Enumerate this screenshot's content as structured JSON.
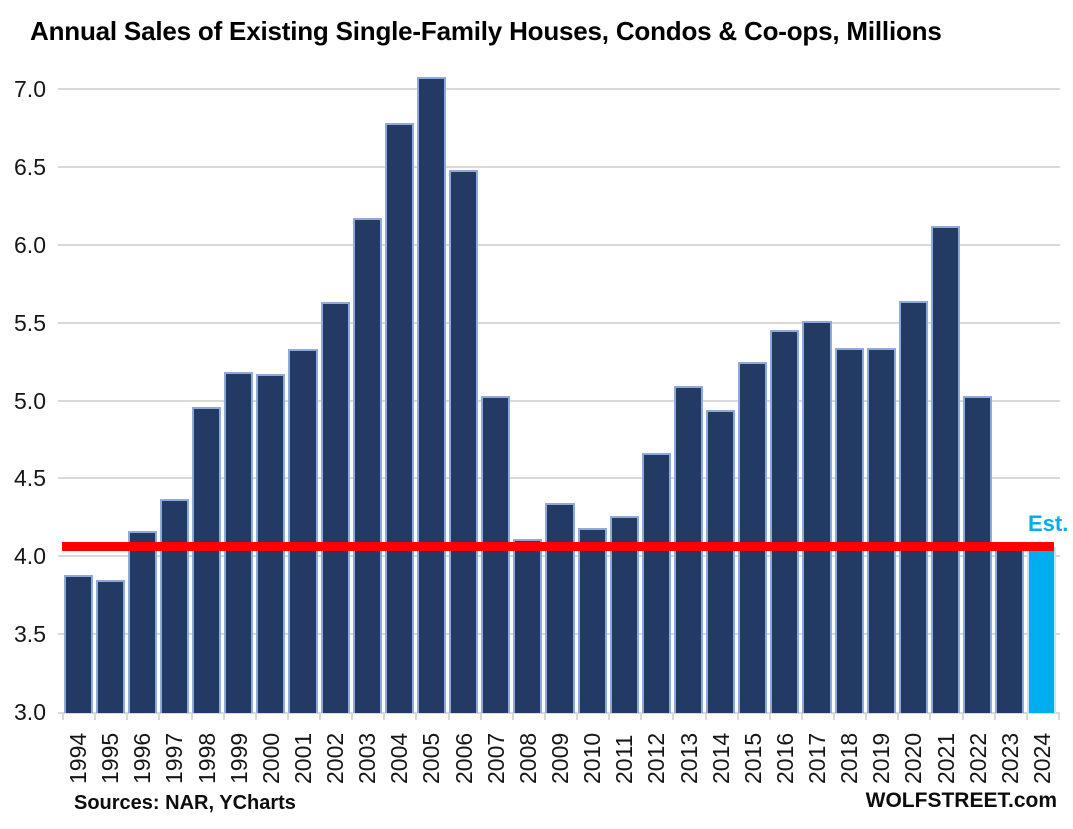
{
  "title": "Annual Sales of Existing Single-Family Houses, Condos & Co-ops, Millions",
  "est_label": "Est.",
  "footer": {
    "source_note": "Sources: NAR, YCharts",
    "branding": "WOLFSTREET.com"
  },
  "colors": {
    "bar_fill": "#223a64",
    "bar_border": "#8fa9d9",
    "est_bar_fill": "#00aeef",
    "est_bar_border": "#bfe6fa",
    "red_line": "#ff0000",
    "gridline": "#d9d9d9",
    "tick": "#cfcfcf",
    "text": "#161616"
  },
  "chart_data": {
    "type": "bar",
    "title": "Annual Sales of Existing Single-Family Houses, Condos & Co-ops, Millions",
    "unit": "millions of homes per year",
    "categories": [
      "1994",
      "1995",
      "1996",
      "1997",
      "1998",
      "1999",
      "2000",
      "2001",
      "2002",
      "2003",
      "2004",
      "2005",
      "2006",
      "2007",
      "2008",
      "2009",
      "2010",
      "2011",
      "2012",
      "2013",
      "2014",
      "2015",
      "2016",
      "2017",
      "2018",
      "2019",
      "2020",
      "2021",
      "2022",
      "2023",
      "2024"
    ],
    "values": [
      3.88,
      3.85,
      4.16,
      4.37,
      4.96,
      5.18,
      5.17,
      5.33,
      5.63,
      6.17,
      6.78,
      7.08,
      6.48,
      5.03,
      4.11,
      4.34,
      4.18,
      4.26,
      4.66,
      5.09,
      4.94,
      5.25,
      5.45,
      5.51,
      5.34,
      5.34,
      5.64,
      6.12,
      5.03,
      4.09,
      4.06
    ],
    "est_year": "2024",
    "annotations": [
      {
        "text": "Est.",
        "target": "2024"
      }
    ],
    "red_line_value": 4.06,
    "red_line_note": "horizontal red reference line at the 2024 estimated sales level",
    "xlabel": "",
    "ylabel": "",
    "ylim": [
      3.0,
      7.0
    ],
    "ytick_step": 0.5,
    "yticks": [
      "7.0",
      "6.5",
      "6.0",
      "5.5",
      "5.0",
      "4.5",
      "4.0",
      "3.5",
      "3.0"
    ],
    "grid": "horizontal",
    "legend": "none"
  }
}
